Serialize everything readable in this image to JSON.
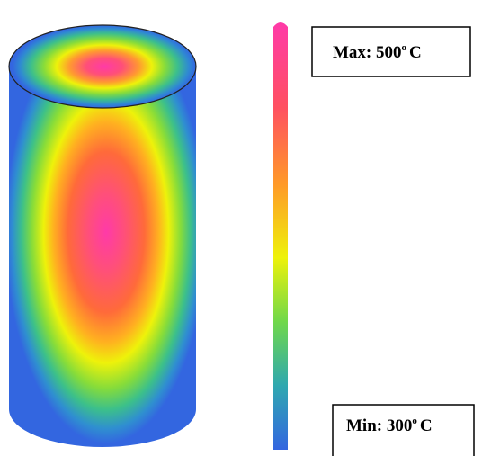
{
  "legend": {
    "max": {
      "text": "Max: 500",
      "degree": "o",
      "unit": "C"
    },
    "min": {
      "text": "Min: 300",
      "degree": "o",
      "unit": "C"
    }
  }
}
